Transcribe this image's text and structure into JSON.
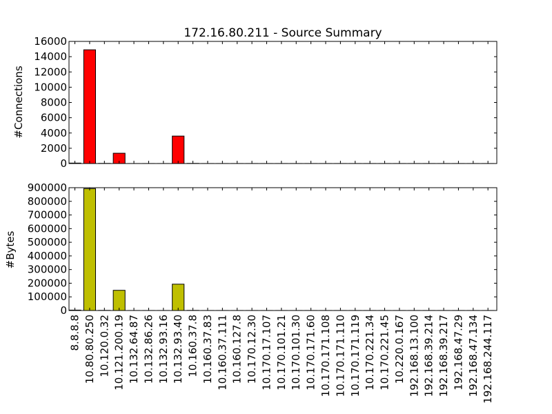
{
  "chart_data": [
    {
      "type": "bar",
      "title": "172.16.80.211 - Source Summary",
      "xlabel": "",
      "ylabel": "#Connections",
      "ylim": [
        0,
        16000
      ],
      "yticks": [
        0,
        2000,
        4000,
        6000,
        8000,
        10000,
        12000,
        14000,
        16000
      ],
      "bar_color": "#ff0000",
      "categories": [
        "8.8.8.8",
        "10.80.80.250",
        "10.120.0.32",
        "10.121.200.19",
        "10.132.64.87",
        "10.132.86.26",
        "10.132.93.16",
        "10.132.93.40",
        "10.160.37.8",
        "10.160.37.83",
        "10.160.37.111",
        "10.160.127.8",
        "10.170.12.30",
        "10.170.17.107",
        "10.170.101.21",
        "10.170.101.30",
        "10.170.171.60",
        "10.170.171.108",
        "10.170.171.110",
        "10.170.171.119",
        "10.170.221.34",
        "10.170.221.45",
        "10.220.0.167",
        "192.168.13.100",
        "192.168.39.214",
        "192.168.39.217",
        "192.168.47.29",
        "192.168.47.134",
        "192.168.244.117"
      ],
      "values": [
        60,
        14900,
        20,
        1350,
        5,
        5,
        5,
        3600,
        20,
        5,
        5,
        5,
        5,
        5,
        5,
        5,
        5,
        5,
        5,
        5,
        5,
        5,
        5,
        5,
        5,
        5,
        5,
        5,
        5
      ]
    },
    {
      "type": "bar",
      "xlabel": "",
      "ylabel": "#Bytes",
      "ylim": [
        0,
        900000
      ],
      "yticks": [
        0,
        100000,
        200000,
        300000,
        400000,
        500000,
        600000,
        700000,
        800000,
        900000
      ],
      "bar_color": "#bfbf00",
      "categories": [
        "8.8.8.8",
        "10.80.80.250",
        "10.120.0.32",
        "10.121.200.19",
        "10.132.64.87",
        "10.132.86.26",
        "10.132.93.16",
        "10.132.93.40",
        "10.160.37.8",
        "10.160.37.83",
        "10.160.37.111",
        "10.160.127.8",
        "10.170.12.30",
        "10.170.17.107",
        "10.170.101.21",
        "10.170.101.30",
        "10.170.171.60",
        "10.170.171.108",
        "10.170.171.110",
        "10.170.171.119",
        "10.170.221.34",
        "10.170.221.45",
        "10.220.0.167",
        "192.168.13.100",
        "192.168.39.214",
        "192.168.39.217",
        "192.168.47.29",
        "192.168.47.134",
        "192.168.244.117"
      ],
      "values": [
        3000,
        893000,
        1000,
        148000,
        300,
        300,
        300,
        193000,
        1000,
        300,
        300,
        300,
        300,
        300,
        300,
        300,
        300,
        300,
        300,
        300,
        300,
        300,
        300,
        300,
        300,
        300,
        300,
        300,
        300
      ]
    }
  ]
}
